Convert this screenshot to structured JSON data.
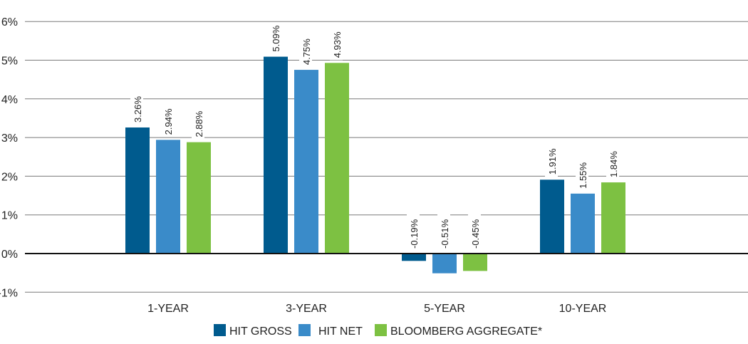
{
  "chart_data": {
    "type": "bar",
    "title": "",
    "xlabel": "",
    "ylabel": "",
    "ylim": [
      -1,
      6
    ],
    "yticks": [
      -1,
      0,
      1,
      2,
      3,
      4,
      5,
      6
    ],
    "ytick_labels": [
      "-1%",
      "0%",
      "1%",
      "2%",
      "3%",
      "4%",
      "5%",
      "6%"
    ],
    "grid": true,
    "legend_position": "bottom",
    "categories": [
      "1-YEAR",
      "3-YEAR",
      "5-YEAR",
      "10-YEAR"
    ],
    "series": [
      {
        "name": "HIT GROSS",
        "color": "#005b8e",
        "values": [
          3.26,
          5.09,
          -0.19,
          1.91
        ],
        "labels": [
          "3.26%",
          "5.09%",
          "-0.19%",
          "1.91%"
        ]
      },
      {
        "name": "HIT NET",
        "color": "#3a8bc9",
        "values": [
          2.94,
          4.75,
          -0.51,
          1.55
        ],
        "labels": [
          "2.94%",
          "4.75%",
          "-0.51%",
          "1.55%"
        ]
      },
      {
        "name": "BLOOMBERG AGGREGATE*",
        "color": "#7dc142",
        "values": [
          2.88,
          4.93,
          -0.45,
          1.84
        ],
        "labels": [
          "2.88%",
          "4.93%",
          "-0.45%",
          "1.84%"
        ]
      }
    ]
  }
}
